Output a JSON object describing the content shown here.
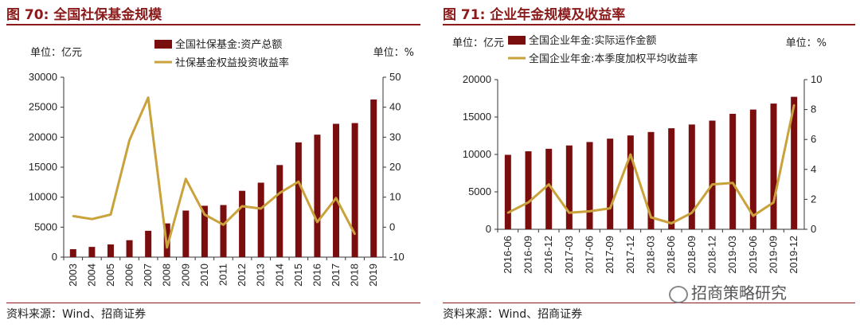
{
  "chart_data": [
    {
      "type": "bar+line",
      "title": "图 70:  全国社保基金规模",
      "left_unit": "单位：亿元",
      "right_unit": "单位：%",
      "categories": [
        "2003",
        "2004",
        "2005",
        "2006",
        "2007",
        "2008",
        "2009",
        "2010",
        "2011",
        "2012",
        "2013",
        "2014",
        "2015",
        "2016",
        "2017",
        "2018",
        "2019"
      ],
      "series": [
        {
          "name": "全国社保基金:资产总额",
          "kind": "bar",
          "axis": "left",
          "color": "#7a0e0e",
          "values": [
            1325,
            1711,
            2118,
            2828,
            4397,
            5624,
            7766,
            8567,
            8688,
            11060,
            12416,
            15356,
            19138,
            20423,
            22231,
            22354,
            26285
          ]
        },
        {
          "name": "社保基金权益投资收益率",
          "kind": "line",
          "axis": "right",
          "color": "#c9a23b",
          "values": [
            3.7,
            2.7,
            4.2,
            29.0,
            43.2,
            -6.8,
            16.1,
            4.2,
            0.8,
            7.0,
            6.2,
            11.4,
            15.2,
            1.7,
            9.7,
            -2.3,
            null
          ]
        }
      ],
      "yleft": {
        "min": 0,
        "max": 30000,
        "ticks": [
          "0",
          "5000",
          "10000",
          "15000",
          "20000",
          "25000",
          "30000"
        ]
      },
      "yright": {
        "min": -10,
        "max": 50,
        "ticks": [
          "-10",
          "0",
          "10",
          "20",
          "30",
          "40",
          "50"
        ]
      },
      "source": "资料来源：Wind、招商证券"
    },
    {
      "type": "bar+line",
      "title": "图 71:  企业年金规模及收益率",
      "left_unit": "单位：亿元",
      "right_unit": "单位：%",
      "categories": [
        "2016-06",
        "2016-09",
        "2016-12",
        "2017-03",
        "2017-06",
        "2017-09",
        "2017-12",
        "2018-03",
        "2018-06",
        "2018-09",
        "2018-12",
        "2019-03",
        "2019-06",
        "2019-09",
        "2019-12"
      ],
      "series": [
        {
          "name": "全国企业年金:实际运作金额",
          "kind": "bar",
          "axis": "left",
          "color": "#7a0e0e",
          "values": [
            9950,
            10420,
            10756,
            11200,
            11660,
            12110,
            12538,
            13000,
            13500,
            14000,
            14520,
            15430,
            16000,
            16800,
            17700
          ]
        },
        {
          "name": "全国企业年金:本季度加权平均收益率",
          "kind": "line",
          "axis": "right",
          "color": "#c9a23b",
          "values": [
            1.1,
            1.8,
            3.0,
            1.1,
            1.2,
            1.4,
            5.0,
            0.8,
            0.4,
            1.1,
            3.0,
            3.1,
            0.9,
            1.8,
            8.3
          ]
        }
      ],
      "yleft": {
        "min": 0,
        "max": 20000,
        "ticks": [
          "0",
          "5000",
          "10000",
          "15000",
          "20000"
        ]
      },
      "yright": {
        "min": 0,
        "max": 10,
        "ticks": [
          "0",
          "2",
          "4",
          "6",
          "8",
          "10"
        ]
      },
      "source": "资料来源：Wind、招商证券"
    }
  ],
  "watermark": "招商策略研究"
}
